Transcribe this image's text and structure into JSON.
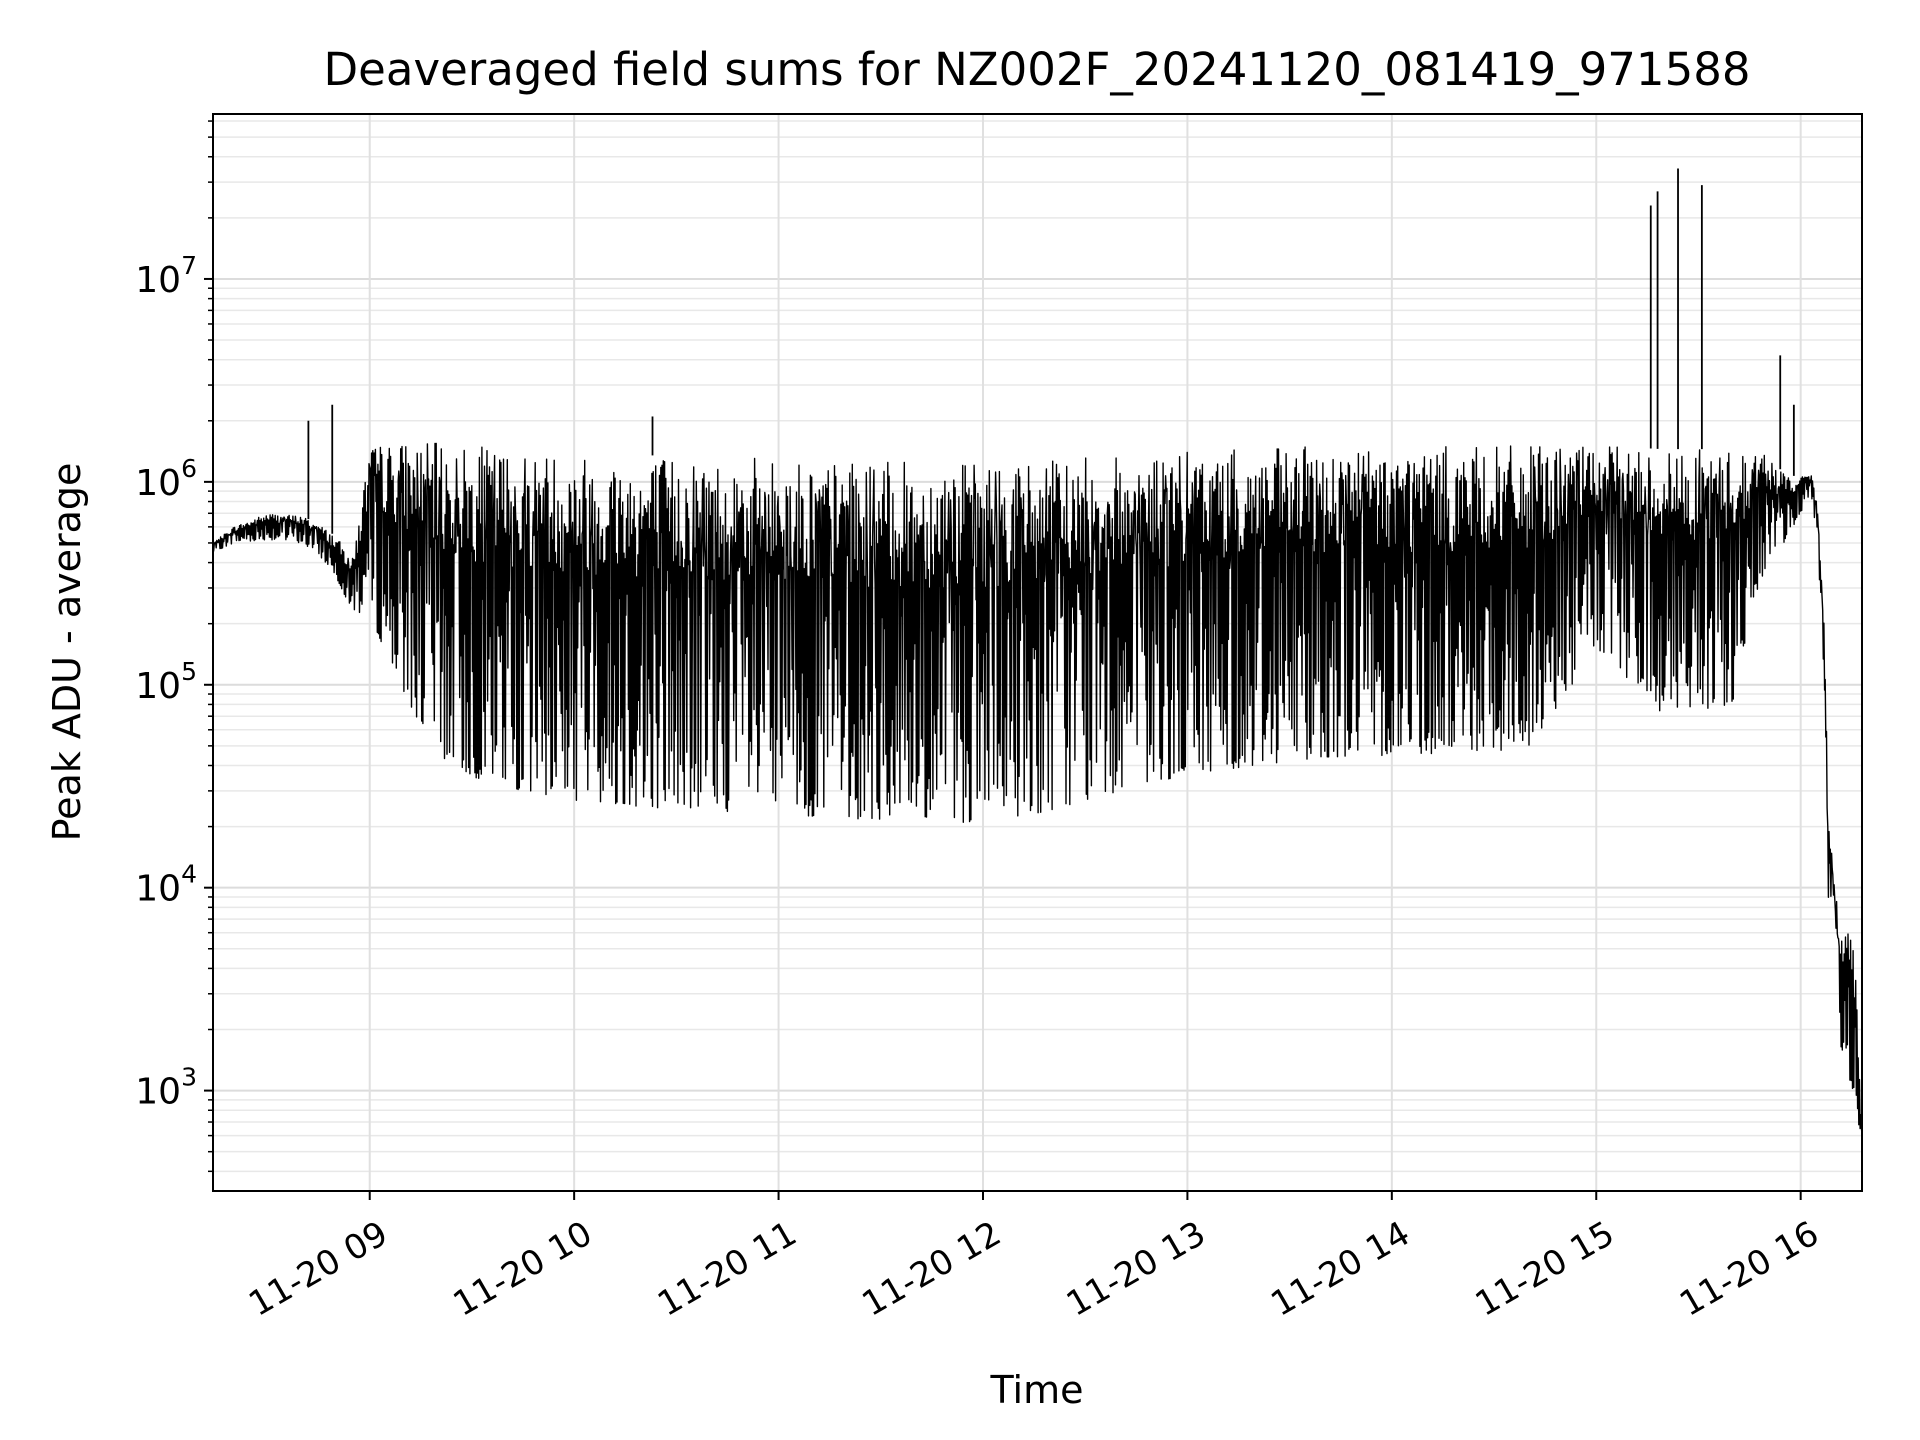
{
  "chart_data": {
    "type": "line",
    "title": "Deaveraged field sums for NZ002F_20241120_081419_971588",
    "xlabel": "Time",
    "ylabel": "Peak ADU - average",
    "x_scale": "time",
    "y_scale": "log",
    "xlim": [
      "2024-11-20T08:14:00",
      "2024-11-20T16:18:00"
    ],
    "ylim": [
      320,
      65000000
    ],
    "grid": true,
    "legend": "none",
    "line_color": "#000000",
    "x_ticks": [
      "2024-11-20T09:00",
      "2024-11-20T10:00",
      "2024-11-20T11:00",
      "2024-11-20T12:00",
      "2024-11-20T13:00",
      "2024-11-20T14:00",
      "2024-11-20T15:00",
      "2024-11-20T16:00"
    ],
    "x_tick_labels": [
      "11-20 09",
      "11-20 10",
      "11-20 11",
      "11-20 12",
      "11-20 13",
      "11-20 14",
      "11-20 15",
      "11-20 16"
    ],
    "y_ticks": [
      1000,
      10000,
      100000,
      1000000,
      10000000
    ],
    "y_tick_labels": [
      {
        "base": "10",
        "exp": "3"
      },
      {
        "base": "10",
        "exp": "4"
      },
      {
        "base": "10",
        "exp": "5"
      },
      {
        "base": "10",
        "exp": "6"
      },
      {
        "base": "10",
        "exp": "7"
      }
    ],
    "series": [
      {
        "upper": {
          "x": [
            "08:14",
            "08:20",
            "08:30",
            "08:40",
            "08:45",
            "08:50",
            "08:55",
            "09:00",
            "09:10",
            "09:20",
            "09:30",
            "09:45",
            "10:00",
            "10:20",
            "10:40",
            "11:00",
            "11:20",
            "11:40",
            "12:00",
            "12:20",
            "12:40",
            "13:00",
            "13:20",
            "13:40",
            "14:00",
            "14:20",
            "14:40",
            "15:00",
            "15:20",
            "15:40",
            "15:50",
            "15:55",
            "16:00",
            "16:03",
            "16:05",
            "16:07",
            "16:08",
            "16:10",
            "16:12",
            "16:14",
            "16:16",
            "16:18"
          ],
          "y": [
            500000,
            600000,
            700000,
            680000,
            620000,
            540000,
            420000,
            1500000,
            1600000,
            1550000,
            1500000,
            1450000,
            1400000,
            1350000,
            1350000,
            1300000,
            1250000,
            1250000,
            1250000,
            1300000,
            1350000,
            1400000,
            1450000,
            1500000,
            1500000,
            1500000,
            1500000,
            1500000,
            1450000,
            1450000,
            1400000,
            1100000,
            1050000,
            1100000,
            800000,
            200000,
            25000,
            10000,
            7000,
            6500,
            5000,
            600
          ]
        },
        "lower": {
          "x": [
            "08:14",
            "08:20",
            "08:30",
            "08:40",
            "08:45",
            "08:50",
            "08:55",
            "09:00",
            "09:10",
            "09:20",
            "09:30",
            "09:45",
            "10:00",
            "10:20",
            "10:40",
            "11:00",
            "11:20",
            "11:40",
            "12:00",
            "12:20",
            "12:40",
            "13:00",
            "13:20",
            "13:40",
            "14:00",
            "14:20",
            "14:40",
            "15:00",
            "15:20",
            "15:40",
            "15:50",
            "15:55",
            "16:00",
            "16:03",
            "16:05",
            "16:07",
            "16:08",
            "16:10",
            "16:12",
            "16:14",
            "16:16",
            "16:18"
          ],
          "y": [
            450000,
            500000,
            520000,
            500000,
            440000,
            340000,
            230000,
            220000,
            90000,
            45000,
            35000,
            30000,
            27000,
            25000,
            24000,
            23000,
            22000,
            21000,
            21000,
            24000,
            30000,
            36000,
            40000,
            44000,
            45000,
            46000,
            48000,
            150000,
            70000,
            80000,
            400000,
            500000,
            700000,
            900000,
            500000,
            90000,
            8000,
            4000,
            1500,
            1200,
            900,
            500
          ]
        },
        "spikes": [
          {
            "x": "08:42",
            "y": 2000000
          },
          {
            "x": "08:49",
            "y": 2400000
          },
          {
            "x": "10:23",
            "y": 2100000
          },
          {
            "x": "15:16",
            "y": 23000000
          },
          {
            "x": "15:18",
            "y": 27000000
          },
          {
            "x": "15:24",
            "y": 35000000
          },
          {
            "x": "15:31",
            "y": 29000000
          },
          {
            "x": "15:54",
            "y": 4200000
          },
          {
            "x": "15:58",
            "y": 2400000
          }
        ]
      }
    ]
  }
}
